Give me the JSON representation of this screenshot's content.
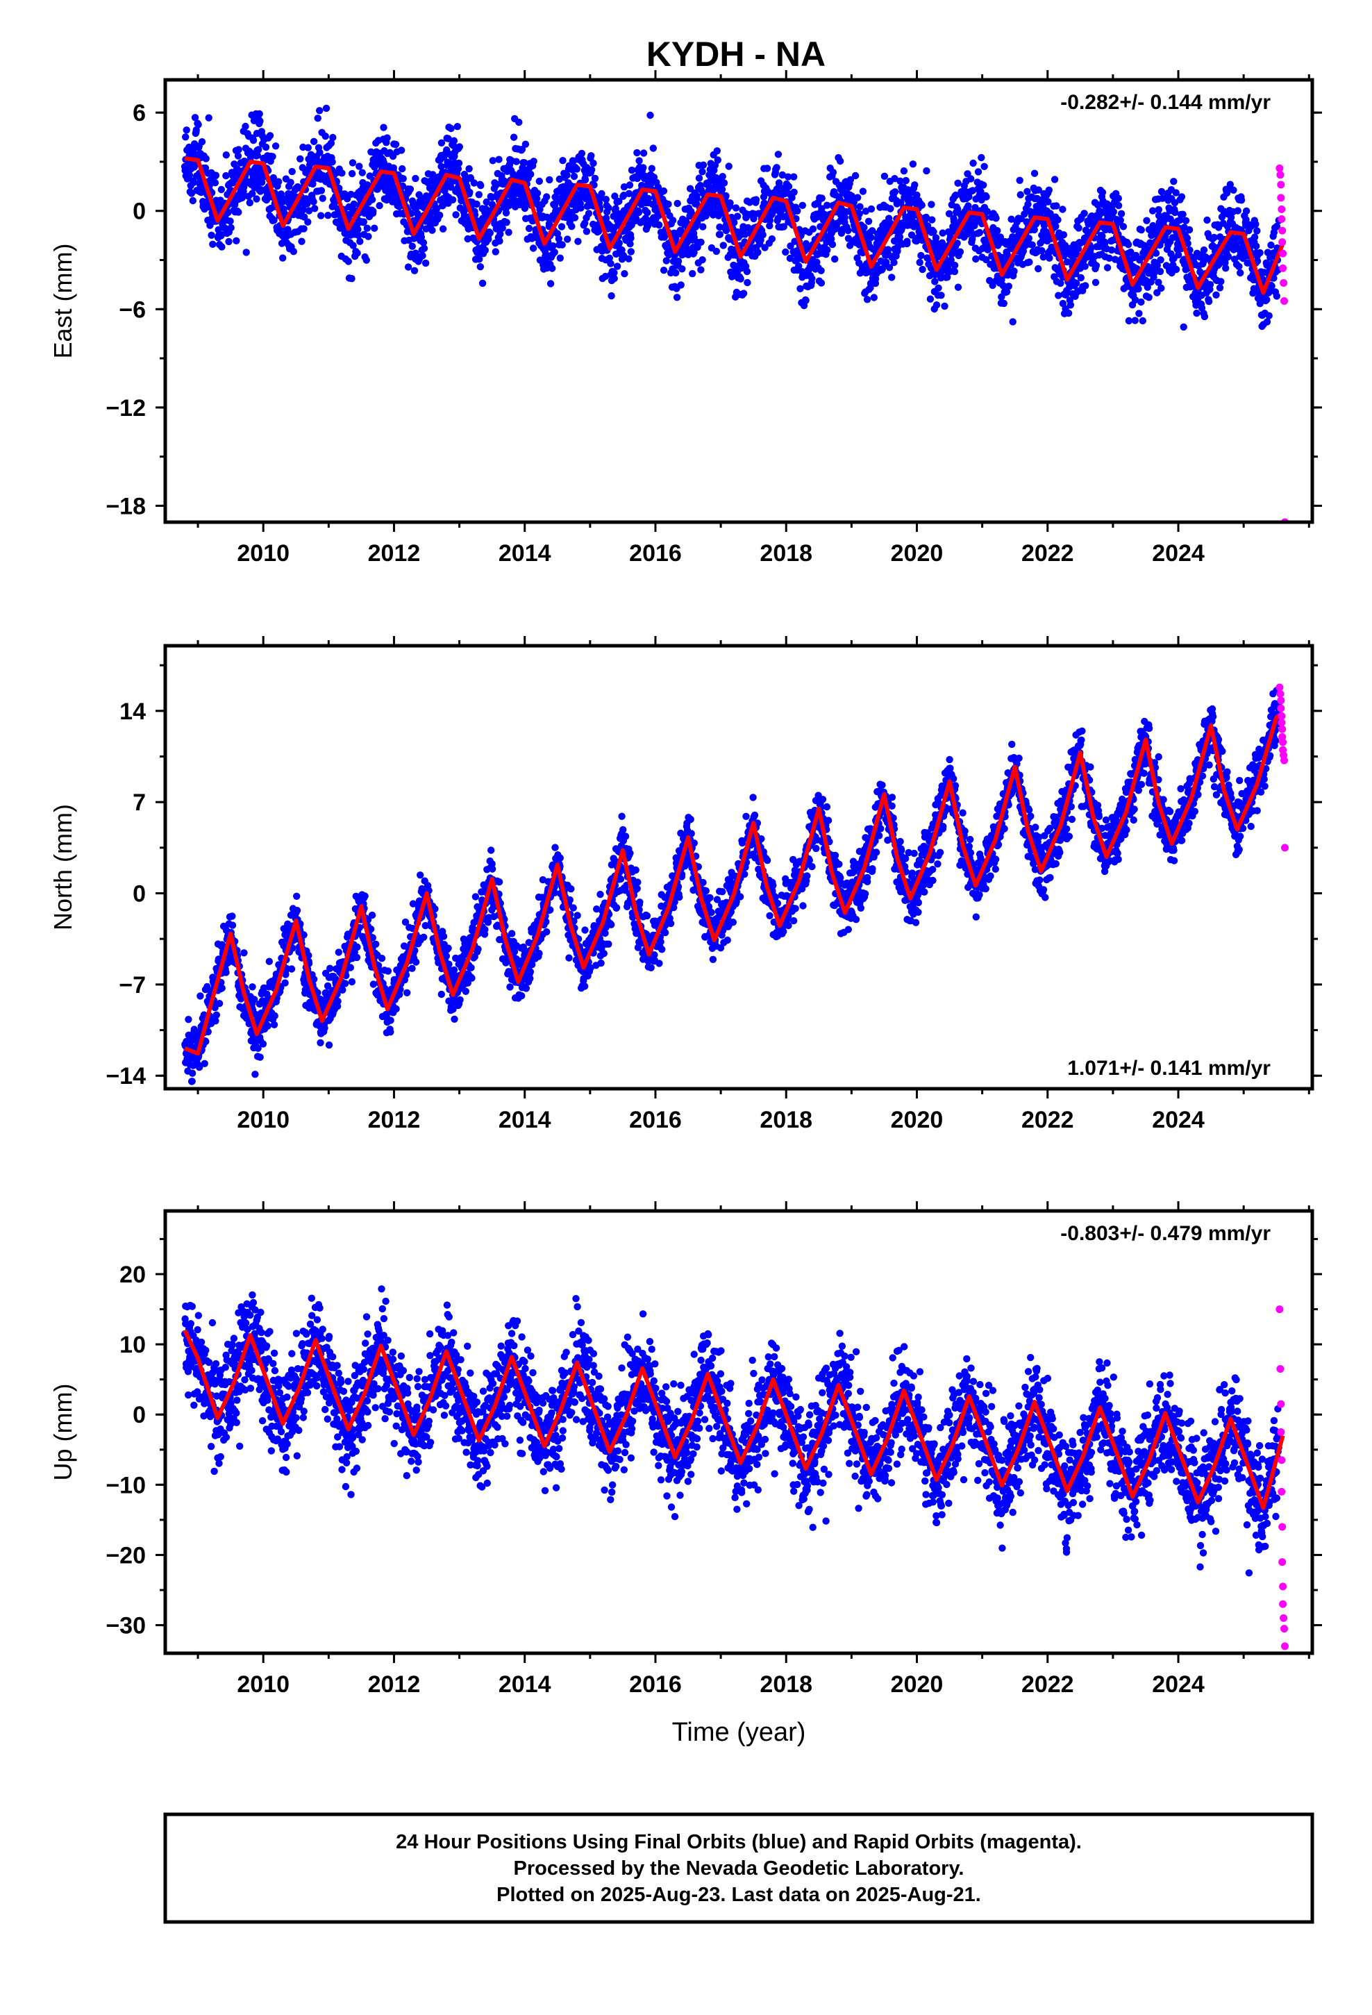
{
  "page": {
    "title": "KYDH - NA",
    "footer": [
      "24 Hour Positions Using Final Orbits (blue) and Rapid Orbits (magenta).",
      "Processed by the Nevada Geodetic Laboratory.",
      "Plotted on 2025-Aug-23. Last data on 2025-Aug-21."
    ]
  },
  "colors": {
    "final": "#0000ff",
    "rapid": "#ff00ff",
    "fit": "#ff0000"
  },
  "chart_data": [
    {
      "type": "scatter",
      "component": "East",
      "ylabel": "East (mm)",
      "xlabel": "",
      "rate": "-0.282+/- 0.144 mm/yr",
      "rate_position": "top-right",
      "xlim": [
        2008.5,
        2026.05
      ],
      "ylim": [
        -19,
        8
      ],
      "x_ticks": [
        2010,
        2012,
        2014,
        2016,
        2018,
        2020,
        2022,
        2024
      ],
      "y_ticks": [
        6,
        0,
        -6,
        -12,
        -18
      ],
      "fit": {
        "x": [
          2008.8,
          2009.0,
          2009.3,
          2009.5,
          2009.8,
          2010.0,
          2010.3,
          2010.5,
          2010.8,
          2011.0,
          2011.3,
          2011.5,
          2011.8,
          2012.0,
          2012.3,
          2012.5,
          2012.8,
          2013.0,
          2013.3,
          2013.5,
          2013.8,
          2014.0,
          2014.3,
          2014.5,
          2014.8,
          2015.0,
          2015.3,
          2015.5,
          2015.8,
          2016.0,
          2016.3,
          2016.5,
          2016.8,
          2017.0,
          2017.3,
          2017.5,
          2017.8,
          2018.0,
          2018.3,
          2018.5,
          2018.8,
          2019.0,
          2019.3,
          2019.5,
          2019.8,
          2020.0,
          2020.3,
          2020.5,
          2020.8,
          2021.0,
          2021.3,
          2021.5,
          2021.8,
          2022.0,
          2022.3,
          2022.5,
          2022.8,
          2023.0,
          2023.3,
          2023.5,
          2023.8,
          2024.0,
          2024.3,
          2024.5,
          2024.8,
          2025.0,
          2025.3,
          2025.5,
          2025.6
        ],
        "y": [
          3.2,
          3.1,
          -0.6,
          0.8,
          3.0,
          2.9,
          -0.9,
          0.5,
          2.7,
          2.6,
          -1.1,
          0.3,
          2.4,
          2.3,
          -1.4,
          0.0,
          2.2,
          2.0,
          -1.7,
          -0.3,
          1.9,
          1.7,
          -2.0,
          -0.6,
          1.6,
          1.5,
          -2.3,
          -0.9,
          1.3,
          1.2,
          -2.5,
          -1.1,
          1.0,
          0.9,
          -2.8,
          -1.4,
          0.8,
          0.6,
          -3.1,
          -1.7,
          0.5,
          0.3,
          -3.4,
          -2.0,
          0.2,
          0.1,
          -3.6,
          -2.2,
          -0.1,
          -0.2,
          -3.9,
          -2.5,
          -0.4,
          -0.5,
          -4.2,
          -2.8,
          -0.7,
          -0.8,
          -4.5,
          -3.1,
          -1.0,
          -1.1,
          -4.7,
          -3.3,
          -1.3,
          -1.4,
          -5.0,
          -3.0,
          -2.0
        ]
      },
      "rapid": {
        "x": [
          2025.55,
          2025.56,
          2025.57,
          2025.57,
          2025.58,
          2025.58,
          2025.59,
          2025.59,
          2025.6,
          2025.6,
          2025.61,
          2025.62,
          2025.63
        ],
        "y": [
          2.6,
          2.2,
          1.6,
          0.8,
          0.1,
          -0.5,
          -1.2,
          -1.9,
          -2.6,
          -3.5,
          -4.4,
          -5.5,
          -19.0
        ]
      }
    },
    {
      "type": "scatter",
      "component": "North",
      "ylabel": "North (mm)",
      "xlabel": "",
      "rate": "1.071+/- 0.141 mm/yr",
      "rate_position": "bottom-right",
      "xlim": [
        2008.5,
        2026.05
      ],
      "ylim": [
        -15,
        19
      ],
      "x_ticks": [
        2010,
        2012,
        2014,
        2016,
        2018,
        2020,
        2022,
        2024
      ],
      "y_ticks": [
        14,
        7,
        0,
        -7,
        -14
      ],
      "fit": {
        "x": [
          2008.8,
          2009.0,
          2009.2,
          2009.5,
          2009.7,
          2009.9,
          2010.2,
          2010.5,
          2010.7,
          2010.9,
          2011.2,
          2011.5,
          2011.7,
          2011.9,
          2012.2,
          2012.5,
          2012.7,
          2012.9,
          2013.2,
          2013.5,
          2013.7,
          2013.9,
          2014.2,
          2014.5,
          2014.7,
          2014.9,
          2015.2,
          2015.5,
          2015.7,
          2015.9,
          2016.2,
          2016.5,
          2016.7,
          2016.9,
          2017.2,
          2017.5,
          2017.7,
          2017.9,
          2018.2,
          2018.5,
          2018.7,
          2018.9,
          2019.2,
          2019.5,
          2019.7,
          2019.9,
          2020.2,
          2020.5,
          2020.7,
          2020.9,
          2021.2,
          2021.5,
          2021.7,
          2021.9,
          2022.2,
          2022.5,
          2022.7,
          2022.9,
          2023.2,
          2023.5,
          2023.7,
          2023.9,
          2024.2,
          2024.5,
          2024.7,
          2024.9,
          2025.2,
          2025.5,
          2025.6
        ],
        "y": [
          -11.9,
          -12.3,
          -8.5,
          -3.1,
          -7.6,
          -10.8,
          -7.4,
          -2.1,
          -6.6,
          -9.8,
          -6.4,
          -1.0,
          -5.6,
          -8.9,
          -5.3,
          0.0,
          -4.5,
          -7.8,
          -4.3,
          1.1,
          -3.5,
          -6.8,
          -3.2,
          2.2,
          -2.4,
          -5.7,
          -2.2,
          3.3,
          -1.4,
          -4.7,
          -1.1,
          4.3,
          -0.4,
          -3.6,
          -0.1,
          5.4,
          0.6,
          -2.5,
          1.0,
          6.5,
          1.6,
          -1.5,
          2.0,
          7.6,
          2.7,
          -0.4,
          3.1,
          8.6,
          3.7,
          0.6,
          4.1,
          9.7,
          4.8,
          1.7,
          5.2,
          10.8,
          5.8,
          2.8,
          6.2,
          11.8,
          6.9,
          3.8,
          7.3,
          12.9,
          7.9,
          4.9,
          8.3,
          13.5,
          13.8
        ]
      },
      "rapid": {
        "x": [
          2025.55,
          2025.56,
          2025.57,
          2025.57,
          2025.58,
          2025.58,
          2025.59,
          2025.59,
          2025.6,
          2025.6,
          2025.61,
          2025.62,
          2025.63
        ],
        "y": [
          15.8,
          15.3,
          14.8,
          14.2,
          13.6,
          13.1,
          12.6,
          12.0,
          11.6,
          11.0,
          10.6,
          10.2,
          3.5
        ]
      }
    },
    {
      "type": "scatter",
      "component": "Up",
      "ylabel": "Up (mm)",
      "xlabel": "Time (year)",
      "rate": "-0.803+/- 0.479 mm/yr",
      "rate_position": "top-right",
      "xlim": [
        2008.5,
        2026.05
      ],
      "ylim": [
        -34,
        29
      ],
      "x_ticks": [
        2010,
        2012,
        2014,
        2016,
        2018,
        2020,
        2022,
        2024
      ],
      "y_ticks": [
        20,
        10,
        0,
        -10,
        -20,
        -30
      ],
      "fit": {
        "x": [
          2008.8,
          2009.0,
          2009.3,
          2009.55,
          2009.8,
          2010.05,
          2010.3,
          2010.55,
          2010.8,
          2011.05,
          2011.3,
          2011.55,
          2011.8,
          2012.05,
          2012.3,
          2012.55,
          2012.8,
          2013.05,
          2013.3,
          2013.55,
          2013.8,
          2014.05,
          2014.3,
          2014.55,
          2014.8,
          2015.05,
          2015.3,
          2015.55,
          2015.8,
          2016.05,
          2016.3,
          2016.55,
          2016.8,
          2017.05,
          2017.3,
          2017.55,
          2017.8,
          2018.05,
          2018.3,
          2018.55,
          2018.8,
          2019.05,
          2019.3,
          2019.55,
          2019.8,
          2020.05,
          2020.3,
          2020.55,
          2020.8,
          2021.05,
          2021.3,
          2021.55,
          2021.8,
          2022.05,
          2022.3,
          2022.55,
          2022.8,
          2023.05,
          2023.3,
          2023.55,
          2023.8,
          2024.05,
          2024.3,
          2024.55,
          2024.8,
          2025.05,
          2025.3,
          2025.6
        ],
        "y": [
          12.0,
          8.0,
          -0.5,
          4.5,
          11.3,
          5.0,
          -1.3,
          3.8,
          10.6,
          4.2,
          -2.1,
          3.0,
          9.8,
          3.5,
          -2.9,
          2.2,
          9.0,
          2.7,
          -3.7,
          1.4,
          8.2,
          1.9,
          -4.5,
          0.6,
          7.4,
          1.1,
          -5.3,
          -0.2,
          6.6,
          0.3,
          -6.1,
          -1.0,
          5.8,
          -0.5,
          -6.9,
          -1.8,
          5.0,
          -1.3,
          -7.7,
          -2.6,
          4.2,
          -2.1,
          -8.5,
          -3.4,
          3.4,
          -2.9,
          -9.3,
          -4.2,
          2.6,
          -3.7,
          -10.1,
          -5.0,
          1.8,
          -4.5,
          -10.9,
          -5.8,
          1.0,
          -5.3,
          -11.7,
          -6.6,
          0.2,
          -6.1,
          -12.5,
          -7.4,
          -0.6,
          -6.9,
          -13.3,
          -3.0
        ]
      },
      "rapid": {
        "x": [
          2025.55,
          2025.56,
          2025.57,
          2025.57,
          2025.58,
          2025.58,
          2025.59,
          2025.59,
          2025.6,
          2025.6,
          2025.61,
          2025.62,
          2025.63
        ],
        "y": [
          15.0,
          6.5,
          1.5,
          -2.5,
          -6.5,
          -11.0,
          -16.0,
          -21.0,
          -24.5,
          -27.0,
          -29.0,
          -30.5,
          -33.0
        ]
      }
    }
  ]
}
